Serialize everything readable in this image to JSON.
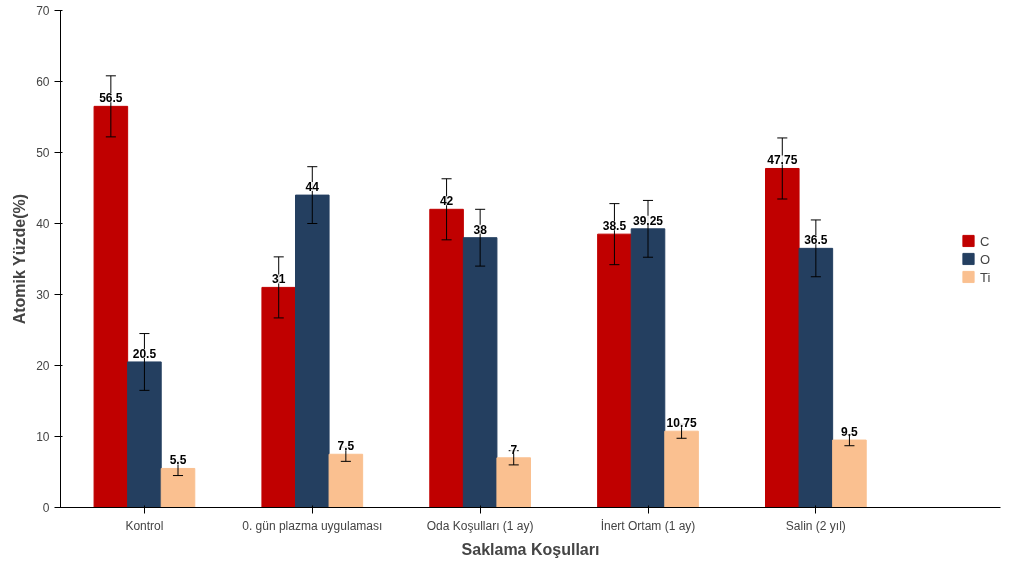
{
  "chart_data": {
    "type": "bar",
    "xlabel": "Saklama Koşulları",
    "ylabel": "Atomik Yüzde(%)",
    "categories": [
      "Kontrol",
      "0. gün plazma uygulaması",
      "Oda Koşulları (1 ay)",
      "İnert Ortam (1 ay)",
      "Salin (2 yıl)"
    ],
    "series": [
      {
        "name": "C",
        "color": "#c00000",
        "values": [
          56.5,
          31,
          42,
          38.5,
          47.75
        ],
        "errors": [
          4.3,
          4.3,
          4.3,
          4.3,
          4.3
        ]
      },
      {
        "name": "O",
        "color": "#243f60",
        "values": [
          20.5,
          44,
          38,
          39.25,
          36.5
        ],
        "errors": [
          4,
          4,
          4,
          4,
          4
        ]
      },
      {
        "name": "Ti",
        "color": "#fac090",
        "values": [
          5.5,
          7.5,
          7,
          10.75,
          9.5
        ],
        "errors": [
          1,
          1,
          1,
          1,
          0.8
        ]
      }
    ],
    "ylim": [
      0,
      70
    ],
    "yticks": [
      0,
      10,
      20,
      30,
      40,
      50,
      60,
      70
    ],
    "grid": false,
    "legend": "right",
    "data_labels": true
  }
}
